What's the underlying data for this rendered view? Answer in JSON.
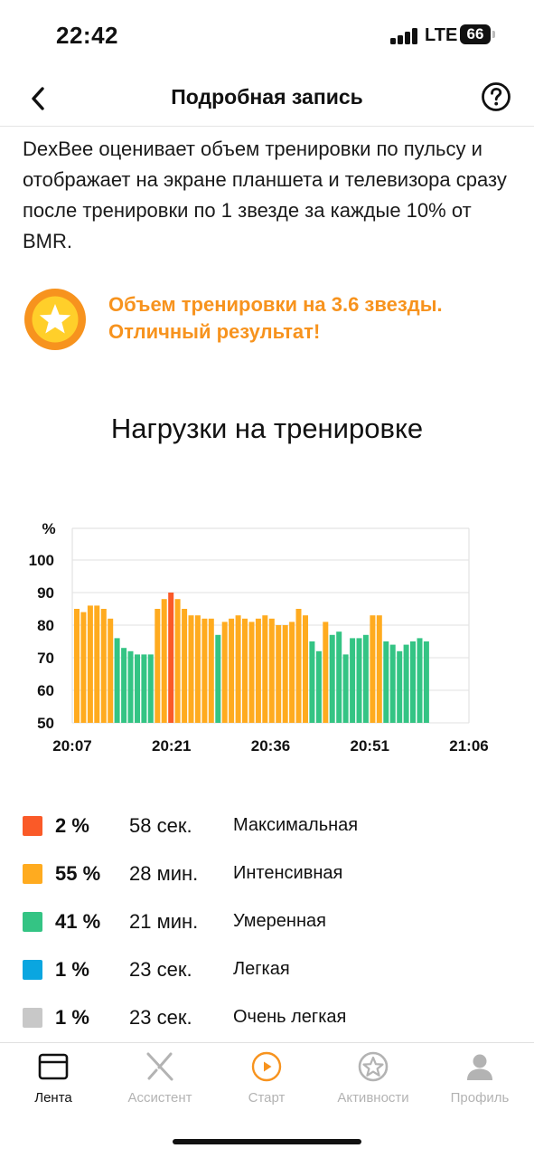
{
  "status_bar": {
    "time": "22:42",
    "network": "LTE",
    "battery": "66"
  },
  "nav": {
    "title": "Подробная запись",
    "back_icon": "chevron-left-icon",
    "help_icon": "question-circle-icon"
  },
  "description": "DexBee оценивает объем тренировки по пульсу и отображает на экране планшета и телевизора сразу после тренировки по 1 звезде за каждые 10% от BMR.",
  "result": {
    "line1": "Объем тренировки на 3.6 звезды.",
    "line2": "Отличный результат!",
    "icon": "star-badge-icon"
  },
  "chart_title": "Нагрузки на тренировке",
  "colors": {
    "max": "#fa5a28",
    "intense": "#ffab1f",
    "moderate": "#34c484",
    "light": "#0aa6e0",
    "very_light": "#c8c8c8",
    "accent": "#f7931e"
  },
  "chart_data": {
    "type": "bar",
    "ylabel": "%",
    "ylim": [
      50,
      100
    ],
    "yticks": [
      "100",
      "90",
      "80",
      "70",
      "60",
      "50"
    ],
    "xlabels": [
      "20:07",
      "20:21",
      "20:36",
      "20:51",
      "21:06"
    ],
    "x_range_minutes": [
      0,
      59
    ],
    "values": [
      85,
      84,
      86,
      86,
      85,
      82,
      76,
      73,
      72,
      71,
      71,
      71,
      85,
      88,
      90,
      88,
      85,
      83,
      83,
      82,
      82,
      77,
      81,
      82,
      83,
      82,
      81,
      82,
      83,
      82,
      80,
      80,
      81,
      85,
      83,
      75,
      72,
      81,
      77,
      78,
      71,
      76,
      76,
      77,
      83,
      83,
      75,
      74,
      72,
      74,
      75,
      76,
      75
    ],
    "zones": [
      "intense",
      "intense",
      "intense",
      "intense",
      "intense",
      "intense",
      "moderate",
      "moderate",
      "moderate",
      "moderate",
      "moderate",
      "moderate",
      "intense",
      "intense",
      "max",
      "intense",
      "intense",
      "intense",
      "intense",
      "intense",
      "intense",
      "moderate",
      "intense",
      "intense",
      "intense",
      "intense",
      "intense",
      "intense",
      "intense",
      "intense",
      "intense",
      "intense",
      "intense",
      "intense",
      "intense",
      "moderate",
      "moderate",
      "intense",
      "moderate",
      "moderate",
      "moderate",
      "moderate",
      "moderate",
      "moderate",
      "intense",
      "intense",
      "moderate",
      "moderate",
      "moderate",
      "moderate",
      "moderate",
      "moderate",
      "moderate"
    ]
  },
  "legend": [
    {
      "zone": "max",
      "pct": "2 %",
      "time": "58 сек.",
      "name": "Максимальная"
    },
    {
      "zone": "intense",
      "pct": "55 %",
      "time": "28 мин.",
      "name": "Интенсивная"
    },
    {
      "zone": "moderate",
      "pct": "41 %",
      "time": "21 мин.",
      "name": "Умеренная"
    },
    {
      "zone": "light",
      "pct": "1 %",
      "time": "23 сек.",
      "name": "Легкая"
    },
    {
      "zone": "very_light",
      "pct": "1 %",
      "time": "23 сек.",
      "name": "Очень легкая"
    }
  ],
  "tabs": [
    {
      "label": "Лента",
      "icon": "feed-card-icon",
      "active": true
    },
    {
      "label": "Ассистент",
      "icon": "crossed-lines-icon",
      "active": false
    },
    {
      "label": "Старт",
      "icon": "play-circle-icon",
      "active": false
    },
    {
      "label": "Активности",
      "icon": "star-medal-icon",
      "active": false
    },
    {
      "label": "Профиль",
      "icon": "person-icon",
      "active": false
    }
  ]
}
